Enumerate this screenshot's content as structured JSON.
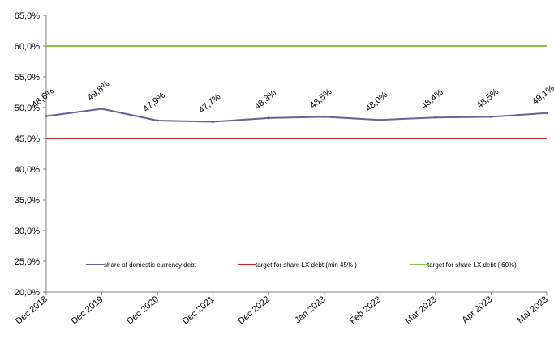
{
  "chart_data": {
    "type": "line",
    "title": "",
    "xlabel": "",
    "ylabel": "",
    "categories": [
      "Dec 2018",
      "Dec 2019",
      "Dec 2020",
      "Dec 2021",
      "Dec 2022",
      "Jan 2023",
      "Feb 2023",
      "Mar 2023",
      "Apr 2023",
      "Mai 2023"
    ],
    "ylim": [
      20.0,
      65.0
    ],
    "ytick_values": [
      20.0,
      25.0,
      30.0,
      35.0,
      40.0,
      45.0,
      50.0,
      55.0,
      60.0,
      65.0
    ],
    "ytick_labels": [
      "20,0%",
      "25,0%",
      "30,0%",
      "35,0%",
      "40,0%",
      "45,0%",
      "50,0%",
      "55,0%",
      "60,0%",
      "65,0%"
    ],
    "grid": false,
    "legend_position": "bottom",
    "series": [
      {
        "name": "share of domestic currency debt",
        "color": "#6a5f99",
        "values": [
          48.6,
          49.8,
          47.9,
          47.7,
          48.3,
          48.5,
          48.0,
          48.4,
          48.5,
          49.1
        ],
        "data_labels": [
          "48,6%",
          "49,8%",
          "47,9%",
          "47,7%",
          "48,3%",
          "48,5%",
          "48,0%",
          "48,4%",
          "48,5%",
          "49,1%"
        ]
      },
      {
        "name": "target for share LX debt (min 45% )",
        "color": "#c0272d",
        "values": [
          45,
          45,
          45,
          45,
          45,
          45,
          45,
          45,
          45,
          45
        ]
      },
      {
        "name": "target for share LX debt ( 60%)",
        "color": "#8cbf45",
        "values": [
          60,
          60,
          60,
          60,
          60,
          60,
          60,
          60,
          60,
          60
        ]
      }
    ]
  }
}
